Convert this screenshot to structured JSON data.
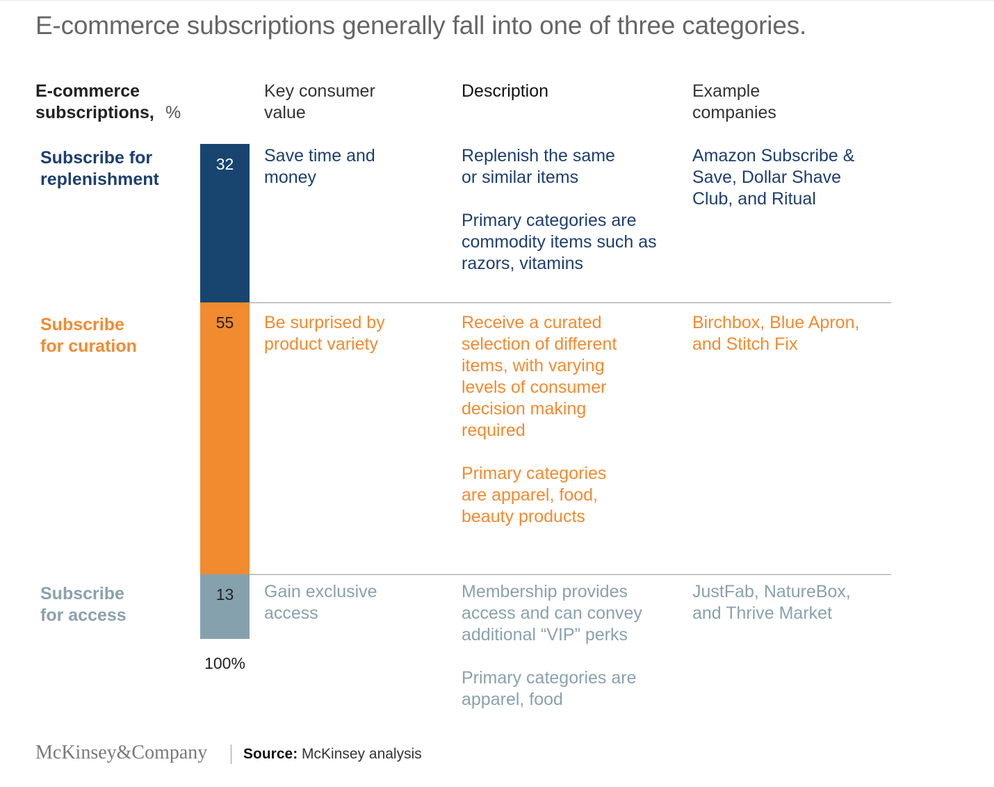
{
  "title": "E-commerce subscriptions generally fall into one of three categories.",
  "headers": {
    "first_bold": "E-commerce subscriptions,",
    "first_unit": "%",
    "key_value": "Key consumer value",
    "description": "Description",
    "examples": "Example companies"
  },
  "colors": {
    "replenishment": "#17456f",
    "curation": "#f28a30",
    "access": "#86a1ae"
  },
  "chart_data": {
    "type": "bar",
    "stacked": true,
    "categories": [
      "Subscribe for replenishment",
      "Subscribe for curation",
      "Subscribe for access"
    ],
    "values": [
      32,
      55,
      13
    ],
    "ylim": [
      0,
      100
    ],
    "total_label": "100%"
  },
  "rows": [
    {
      "label": "Subscribe for replenishment",
      "value": "32",
      "key_value": "Save time and money",
      "description": [
        "Replenish the same or similar items",
        "Primary categories are commodity items such as razors, vitamins"
      ],
      "examples": "Amazon Subscribe & Save, Dollar Shave Club, and Ritual"
    },
    {
      "label": "Subscribe for curation",
      "value": "55",
      "key_value": "Be surprised by product variety",
      "description": [
        "Receive a curated selection of different items, with varying levels of consumer decision making required",
        "Primary categories are apparel, food, beauty products"
      ],
      "examples": "Birchbox, Blue Apron, and Stitch Fix"
    },
    {
      "label": "Subscribe for access",
      "value": "13",
      "key_value": "Gain exclusive access",
      "description": [
        "Membership provides access and can convey additional “VIP” perks",
        "Primary categories are apparel, food"
      ],
      "examples": "JustFab, NatureBox, and Thrive Market"
    }
  ],
  "footer": {
    "logo": "McKinsey&Company",
    "source_label": "Source:",
    "source_text": "McKinsey analysis"
  }
}
